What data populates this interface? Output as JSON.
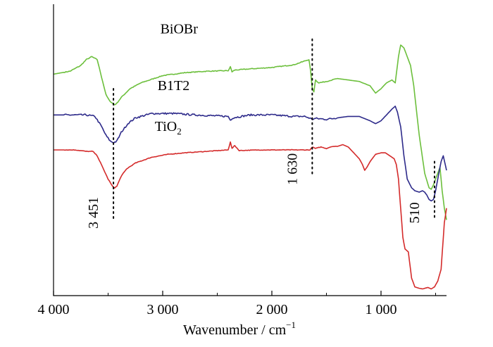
{
  "chart_data": {
    "type": "line",
    "title": "",
    "xlabel": "Wavenumber / cm",
    "xlabel_sup": "−1",
    "ylabel": "",
    "xlim": [
      4000,
      400
    ],
    "ylim": [
      0,
      100
    ],
    "grid": false,
    "x_ticks": [
      {
        "value": 4000,
        "label": "4 000"
      },
      {
        "value": 3000,
        "label": "3 000"
      },
      {
        "value": 2000,
        "label": "2 000"
      },
      {
        "value": 1000,
        "label": "1 000"
      }
    ],
    "series": [
      {
        "name": "BiOBr",
        "label_main": "BiOBr",
        "label_sub": "",
        "label_at": [
          2850,
          90
        ],
        "color": "#6cbf3c",
        "noise": 0.25,
        "points": [
          [
            4000,
            76
          ],
          [
            3850,
            77
          ],
          [
            3750,
            79
          ],
          [
            3700,
            81
          ],
          [
            3650,
            82
          ],
          [
            3600,
            81
          ],
          [
            3560,
            75
          ],
          [
            3520,
            69
          ],
          [
            3490,
            67
          ],
          [
            3460,
            66
          ],
          [
            3440,
            65.5
          ],
          [
            3420,
            66
          ],
          [
            3380,
            68
          ],
          [
            3300,
            71
          ],
          [
            3200,
            73
          ],
          [
            3000,
            75.5
          ],
          [
            2800,
            76.5
          ],
          [
            2600,
            77
          ],
          [
            2400,
            77.2
          ],
          [
            2380,
            78.5
          ],
          [
            2365,
            76.8
          ],
          [
            2340,
            77.4
          ],
          [
            2200,
            77.8
          ],
          [
            2000,
            78.3
          ],
          [
            1800,
            79.2
          ],
          [
            1700,
            80.5
          ],
          [
            1660,
            81
          ],
          [
            1645,
            77
          ],
          [
            1630,
            71
          ],
          [
            1615,
            70
          ],
          [
            1600,
            74
          ],
          [
            1570,
            73
          ],
          [
            1500,
            73.5
          ],
          [
            1400,
            74.5
          ],
          [
            1300,
            74
          ],
          [
            1200,
            73.5
          ],
          [
            1100,
            72
          ],
          [
            1050,
            69.5
          ],
          [
            1000,
            71
          ],
          [
            950,
            73
          ],
          [
            900,
            74
          ],
          [
            870,
            73
          ],
          [
            840,
            82
          ],
          [
            820,
            86
          ],
          [
            790,
            85
          ],
          [
            760,
            82
          ],
          [
            730,
            79
          ],
          [
            700,
            72
          ],
          [
            650,
            55
          ],
          [
            600,
            42
          ],
          [
            560,
            37
          ],
          [
            540,
            36.5
          ],
          [
            520,
            38
          ],
          [
            490,
            41
          ],
          [
            460,
            44
          ],
          [
            440,
            36
          ],
          [
            420,
            30
          ],
          [
            400,
            26
          ]
        ]
      },
      {
        "name": "B1T2",
        "label_main": "B1T2",
        "label_sub": "",
        "label_at": [
          2900,
          70.5
        ],
        "color": "#2d2a8a",
        "noise": 0.6,
        "points": [
          [
            4000,
            62
          ],
          [
            3850,
            62
          ],
          [
            3700,
            62
          ],
          [
            3620,
            61.5
          ],
          [
            3560,
            58
          ],
          [
            3520,
            55
          ],
          [
            3480,
            53
          ],
          [
            3450,
            52.5
          ],
          [
            3420,
            53
          ],
          [
            3380,
            56
          ],
          [
            3320,
            59
          ],
          [
            3250,
            61
          ],
          [
            3100,
            62.5
          ],
          [
            2900,
            62.5
          ],
          [
            2700,
            62
          ],
          [
            2400,
            61.5
          ],
          [
            2380,
            60.2
          ],
          [
            2360,
            61
          ],
          [
            2200,
            62
          ],
          [
            2000,
            62
          ],
          [
            1800,
            61.5
          ],
          [
            1700,
            61.5
          ],
          [
            1660,
            61
          ],
          [
            1630,
            60.5
          ],
          [
            1600,
            60.8
          ],
          [
            1500,
            60.5
          ],
          [
            1400,
            61
          ],
          [
            1300,
            61.5
          ],
          [
            1200,
            61.5
          ],
          [
            1100,
            60
          ],
          [
            1050,
            59
          ],
          [
            1000,
            60
          ],
          [
            950,
            62
          ],
          [
            900,
            64
          ],
          [
            870,
            65
          ],
          [
            850,
            63
          ],
          [
            820,
            58
          ],
          [
            790,
            48
          ],
          [
            760,
            40
          ],
          [
            720,
            37
          ],
          [
            690,
            36
          ],
          [
            650,
            35.5
          ],
          [
            620,
            36
          ],
          [
            600,
            35.5
          ],
          [
            580,
            34.5
          ],
          [
            560,
            33
          ],
          [
            540,
            32.5
          ],
          [
            520,
            33
          ],
          [
            500,
            36
          ],
          [
            470,
            42
          ],
          [
            450,
            46
          ],
          [
            430,
            48
          ],
          [
            400,
            43
          ]
        ]
      },
      {
        "name": "TiO2",
        "label_main": "TiO",
        "label_sub": "2",
        "label_at": [
          2950,
          56.5
        ],
        "color": "#d42a2a",
        "noise": 0.2,
        "points": [
          [
            4000,
            50
          ],
          [
            3800,
            50
          ],
          [
            3700,
            49.5
          ],
          [
            3640,
            49.5
          ],
          [
            3600,
            48
          ],
          [
            3550,
            44
          ],
          [
            3500,
            40
          ],
          [
            3460,
            37.5
          ],
          [
            3440,
            37
          ],
          [
            3420,
            37.5
          ],
          [
            3380,
            41
          ],
          [
            3330,
            43.5
          ],
          [
            3250,
            45.5
          ],
          [
            3100,
            47.5
          ],
          [
            2950,
            48.5
          ],
          [
            2800,
            49
          ],
          [
            2600,
            49.5
          ],
          [
            2400,
            50
          ],
          [
            2380,
            52.8
          ],
          [
            2365,
            50.5
          ],
          [
            2340,
            51.5
          ],
          [
            2300,
            49.8
          ],
          [
            2100,
            50
          ],
          [
            1900,
            50
          ],
          [
            1700,
            50
          ],
          [
            1650,
            50
          ],
          [
            1630,
            51
          ],
          [
            1600,
            50.5
          ],
          [
            1550,
            51
          ],
          [
            1500,
            50.5
          ],
          [
            1450,
            51.2
          ],
          [
            1400,
            51.2
          ],
          [
            1350,
            51.8
          ],
          [
            1300,
            51
          ],
          [
            1250,
            49
          ],
          [
            1200,
            47
          ],
          [
            1170,
            45
          ],
          [
            1150,
            43
          ],
          [
            1130,
            44
          ],
          [
            1100,
            46
          ],
          [
            1050,
            48.5
          ],
          [
            1000,
            49
          ],
          [
            960,
            49
          ],
          [
            920,
            48
          ],
          [
            880,
            47
          ],
          [
            860,
            45
          ],
          [
            840,
            40
          ],
          [
            820,
            30
          ],
          [
            800,
            20
          ],
          [
            780,
            16
          ],
          [
            750,
            15
          ],
          [
            720,
            6
          ],
          [
            690,
            3
          ],
          [
            650,
            2.5
          ],
          [
            620,
            2.3
          ],
          [
            600,
            2.5
          ],
          [
            570,
            2.8
          ],
          [
            540,
            2.3
          ],
          [
            510,
            3
          ],
          [
            480,
            5
          ],
          [
            450,
            9
          ],
          [
            420,
            25
          ],
          [
            400,
            30
          ]
        ]
      }
    ],
    "annotations": [
      {
        "label": "3 451",
        "x": 3451,
        "y_top": 71,
        "y_bottom": 26
      },
      {
        "label": "1 630",
        "x": 1630,
        "y_top": 88,
        "y_bottom": 41
      },
      {
        "label": "510",
        "x": 510,
        "y_top": 46,
        "y_bottom": 26
      }
    ]
  }
}
